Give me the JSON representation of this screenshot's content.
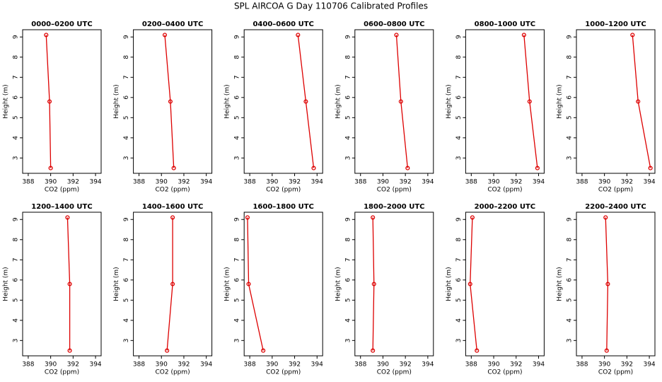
{
  "title": "SPL AIRCOA G  Day 110706  Calibrated Profiles",
  "chart_data": [
    {
      "type": "line",
      "title": "0000–0200 UTC",
      "xlabel": "CO2 (ppm)",
      "ylabel": "Height (m)",
      "x": [
        389.6,
        389.9,
        390.0
      ],
      "values": [
        9.1,
        5.8,
        2.5
      ],
      "color": "#dd0000",
      "xlim": [
        387.5,
        394.5
      ],
      "ylim": [
        2.24,
        9.36
      ],
      "xticks": [
        388,
        390,
        392,
        394
      ],
      "yticks": [
        3,
        4,
        5,
        6,
        7,
        8,
        9
      ]
    },
    {
      "type": "line",
      "title": "0200–0400 UTC",
      "xlabel": "CO2 (ppm)",
      "ylabel": "Height (m)",
      "x": [
        390.3,
        390.8,
        391.1
      ],
      "values": [
        9.1,
        5.8,
        2.5
      ],
      "color": "#dd0000",
      "xlim": [
        387.5,
        394.5
      ],
      "ylim": [
        2.24,
        9.36
      ],
      "xticks": [
        388,
        390,
        392,
        394
      ],
      "yticks": [
        3,
        4,
        5,
        6,
        7,
        8,
        9
      ]
    },
    {
      "type": "line",
      "title": "0400–0600 UTC",
      "xlabel": "CO2 (ppm)",
      "ylabel": "Height (m)",
      "x": [
        392.3,
        393.0,
        393.7
      ],
      "values": [
        9.1,
        5.8,
        2.5
      ],
      "color": "#dd0000",
      "xlim": [
        387.5,
        394.5
      ],
      "ylim": [
        2.24,
        9.36
      ],
      "xticks": [
        388,
        390,
        392,
        394
      ],
      "yticks": [
        3,
        4,
        5,
        6,
        7,
        8,
        9
      ]
    },
    {
      "type": "line",
      "title": "0600–0800 UTC",
      "xlabel": "CO2 (ppm)",
      "ylabel": "Height (m)",
      "x": [
        391.2,
        391.6,
        392.2
      ],
      "values": [
        9.1,
        5.8,
        2.5
      ],
      "color": "#dd0000",
      "xlim": [
        387.5,
        394.5
      ],
      "ylim": [
        2.24,
        9.36
      ],
      "xticks": [
        388,
        390,
        392,
        394
      ],
      "yticks": [
        3,
        4,
        5,
        6,
        7,
        8,
        9
      ]
    },
    {
      "type": "line",
      "title": "0800–1000 UTC",
      "xlabel": "CO2 (ppm)",
      "ylabel": "Height (m)",
      "x": [
        392.7,
        393.2,
        393.9
      ],
      "values": [
        9.1,
        5.8,
        2.5
      ],
      "color": "#dd0000",
      "xlim": [
        387.5,
        394.5
      ],
      "ylim": [
        2.24,
        9.36
      ],
      "xticks": [
        388,
        390,
        392,
        394
      ],
      "yticks": [
        3,
        4,
        5,
        6,
        7,
        8,
        9
      ]
    },
    {
      "type": "line",
      "title": "1000–1200 UTC",
      "xlabel": "CO2 (ppm)",
      "ylabel": "Height (m)",
      "x": [
        392.5,
        393.0,
        394.1
      ],
      "values": [
        9.1,
        5.8,
        2.5
      ],
      "color": "#dd0000",
      "xlim": [
        387.5,
        394.5
      ],
      "ylim": [
        2.24,
        9.36
      ],
      "xticks": [
        388,
        390,
        392,
        394
      ],
      "yticks": [
        3,
        4,
        5,
        6,
        7,
        8,
        9
      ]
    },
    {
      "type": "line",
      "title": "1200–1400 UTC",
      "xlabel": "CO2 (ppm)",
      "ylabel": "Height (m)",
      "x": [
        391.5,
        391.7,
        391.7
      ],
      "values": [
        9.1,
        5.8,
        2.5
      ],
      "color": "#dd0000",
      "xlim": [
        387.5,
        394.5
      ],
      "ylim": [
        2.24,
        9.36
      ],
      "xticks": [
        388,
        390,
        392,
        394
      ],
      "yticks": [
        3,
        4,
        5,
        6,
        7,
        8,
        9
      ]
    },
    {
      "type": "line",
      "title": "1400–1600 UTC",
      "xlabel": "CO2 (ppm)",
      "ylabel": "Height (m)",
      "x": [
        391.0,
        391.0,
        390.5
      ],
      "values": [
        9.1,
        5.8,
        2.5
      ],
      "color": "#dd0000",
      "xlim": [
        387.5,
        394.5
      ],
      "ylim": [
        2.24,
        9.36
      ],
      "xticks": [
        388,
        390,
        392,
        394
      ],
      "yticks": [
        3,
        4,
        5,
        6,
        7,
        8,
        9
      ]
    },
    {
      "type": "line",
      "title": "1600–1800 UTC",
      "xlabel": "CO2 (ppm)",
      "ylabel": "Height (m)",
      "x": [
        387.8,
        387.9,
        389.2
      ],
      "values": [
        9.1,
        5.8,
        2.5
      ],
      "color": "#dd0000",
      "xlim": [
        387.5,
        394.5
      ],
      "ylim": [
        2.24,
        9.36
      ],
      "xticks": [
        388,
        390,
        392,
        394
      ],
      "yticks": [
        3,
        4,
        5,
        6,
        7,
        8,
        9
      ]
    },
    {
      "type": "line",
      "title": "1800–2000 UTC",
      "xlabel": "CO2 (ppm)",
      "ylabel": "Height (m)",
      "x": [
        389.1,
        389.2,
        389.1
      ],
      "values": [
        9.1,
        5.8,
        2.5
      ],
      "color": "#dd0000",
      "xlim": [
        387.5,
        394.5
      ],
      "ylim": [
        2.24,
        9.36
      ],
      "xticks": [
        388,
        390,
        392,
        394
      ],
      "yticks": [
        3,
        4,
        5,
        6,
        7,
        8,
        9
      ]
    },
    {
      "type": "line",
      "title": "2000–2200 UTC",
      "xlabel": "CO2 (ppm)",
      "ylabel": "Height (m)",
      "x": [
        388.1,
        387.9,
        388.5
      ],
      "values": [
        9.1,
        5.8,
        2.5
      ],
      "color": "#dd0000",
      "xlim": [
        387.5,
        394.5
      ],
      "ylim": [
        2.24,
        9.36
      ],
      "xticks": [
        388,
        390,
        392,
        394
      ],
      "yticks": [
        3,
        4,
        5,
        6,
        7,
        8,
        9
      ]
    },
    {
      "type": "line",
      "title": "2200–2400 UTC",
      "xlabel": "CO2 (ppm)",
      "ylabel": "Height (m)",
      "x": [
        390.1,
        390.3,
        390.2
      ],
      "values": [
        9.1,
        5.8,
        2.5
      ],
      "color": "#dd0000",
      "xlim": [
        387.5,
        394.5
      ],
      "ylim": [
        2.24,
        9.36
      ],
      "xticks": [
        388,
        390,
        392,
        394
      ],
      "yticks": [
        3,
        4,
        5,
        6,
        7,
        8,
        9
      ]
    }
  ]
}
